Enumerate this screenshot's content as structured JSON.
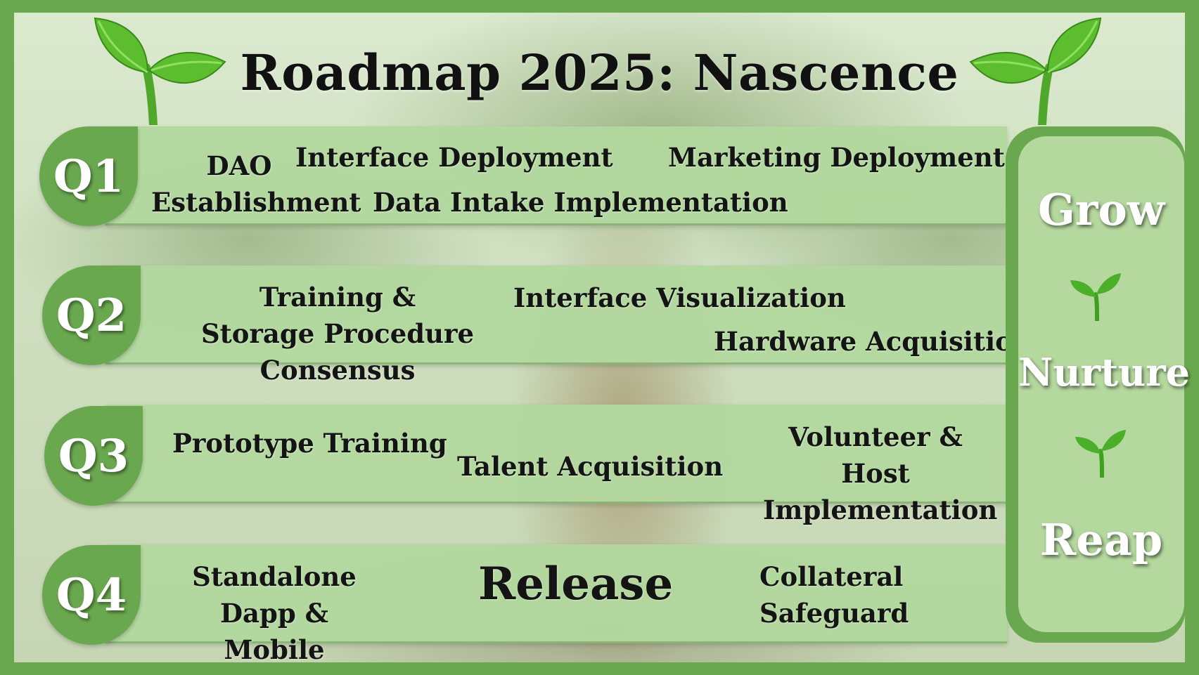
{
  "title": "Roadmap 2025: Nascence",
  "quarters": [
    {
      "label": "Q1",
      "items": [
        "DAO Establishment",
        "Interface Deployment",
        "Marketing Deployment",
        "Data Intake Implementation"
      ]
    },
    {
      "label": "Q2",
      "items": [
        "Training & Storage Procedure Consensus",
        "Interface Visualization",
        "Hardware Acquisition"
      ]
    },
    {
      "label": "Q3",
      "items": [
        "Prototype Training",
        "Talent Acquisition",
        "Volunteer & Host Implementation"
      ]
    },
    {
      "label": "Q4",
      "items": [
        "Standalone Dapp & Mobile",
        "Release",
        "Collateral Safeguard"
      ]
    }
  ],
  "side_panel": [
    "Grow",
    "Nurture",
    "Reap"
  ],
  "icons": [
    "sprout-icon"
  ],
  "colors": {
    "frame": "#6aa84f",
    "band": "#b2d89e",
    "text": "#141414",
    "badge_text": "#ffffff"
  }
}
